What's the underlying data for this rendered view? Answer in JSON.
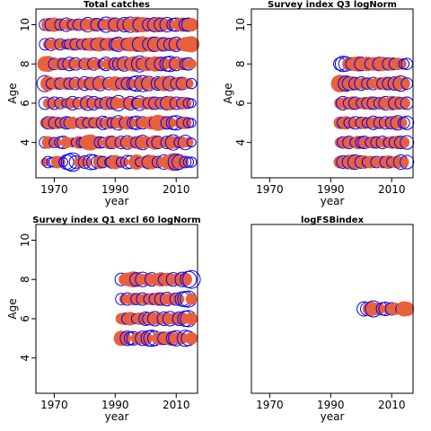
{
  "chart_data": [
    {
      "type": "scatter",
      "title": "Total catches",
      "xlabel": "year",
      "ylabel": "Age",
      "xlim": [
        1964,
        2017
      ],
      "ylim": [
        2.2,
        10.8
      ],
      "xticks": [
        1970,
        1990,
        2010
      ],
      "yticks": [
        4,
        6,
        8,
        10
      ],
      "positive_color": "#e8603c",
      "negative_color": "#0000ff",
      "ages": [
        3,
        4,
        5,
        6,
        7,
        8,
        9,
        10
      ],
      "years": [
        1967,
        1968,
        1969,
        1970,
        1971,
        1972,
        1973,
        1974,
        1975,
        1976,
        1977,
        1978,
        1979,
        1980,
        1981,
        1982,
        1983,
        1984,
        1985,
        1986,
        1987,
        1988,
        1989,
        1990,
        1991,
        1992,
        1993,
        1994,
        1995,
        1996,
        1997,
        1998,
        1999,
        2000,
        2001,
        2002,
        2003,
        2004,
        2005,
        2006,
        2007,
        2008,
        2009,
        2010,
        2011,
        2012,
        2013,
        2014,
        2015
      ],
      "residuals": {
        "3": [
          0.3,
          -0.5,
          -0.3,
          -0.4,
          0.6,
          0.4,
          -0.3,
          -0.8,
          -1.0,
          -1.3,
          -0.6,
          0.4,
          0.5,
          -0.6,
          0.3,
          -0.9,
          -0.8,
          -0.5,
          0.7,
          -0.5,
          0.4,
          -0.3,
          -0.6,
          0.8,
          0.5,
          -0.4,
          0.3,
          -0.7,
          -0.6,
          0.4,
          0.9,
          -0.3,
          0.4,
          0.6,
          -0.7,
          0.8,
          0.3,
          -0.5,
          0.4,
          -0.8,
          0.7,
          0.9,
          1.2,
          -1.0,
          -0.8,
          0.6,
          -0.5,
          -0.4,
          -0.4
        ],
        "4": [
          -0.5,
          0.6,
          0.4,
          -0.4,
          0.3,
          -0.5,
          -0.6,
          0.5,
          0.3,
          0.4,
          -0.3,
          0.6,
          -0.4,
          -0.5,
          0.9,
          1.0,
          0.4,
          0.6,
          -0.5,
          -0.4,
          0.3,
          0.7,
          -0.6,
          0.5,
          0.4,
          -0.6,
          0.5,
          -0.7,
          0.6,
          0.4,
          -0.5,
          0.7,
          -0.8,
          0.6,
          0.5,
          -0.4,
          0.8,
          -0.6,
          0.5,
          0.3,
          -0.6,
          0.7,
          -0.9,
          0.6,
          -0.4,
          0.5,
          -0.8,
          0.4,
          -0.3
        ],
        "5": [
          0.4,
          -0.6,
          0.7,
          -0.5,
          0.6,
          -0.4,
          0.5,
          -0.6,
          -0.5,
          0.6,
          0.4,
          0.3,
          -0.5,
          0.6,
          -0.4,
          0.5,
          -0.4,
          0.5,
          0.4,
          -0.7,
          -0.5,
          0.6,
          -0.4,
          0.5,
          -0.8,
          0.6,
          -0.4,
          0.7,
          0.5,
          -0.6,
          -0.7,
          0.5,
          -0.6,
          0.5,
          0.6,
          0.7,
          -0.5,
          1.0,
          0.8,
          0.7,
          -0.6,
          0.5,
          -0.7,
          -0.8,
          0.4,
          -0.5,
          0.6,
          -0.4,
          -0.3
        ],
        "6": [
          -0.6,
          0.4,
          0.5,
          -0.6,
          0.3,
          -0.5,
          0.4,
          -0.3,
          0.5,
          -0.7,
          0.4,
          -0.5,
          0.3,
          0.6,
          -0.8,
          0.4,
          -0.7,
          0.5,
          -0.4,
          0.3,
          -0.6,
          0.7,
          -0.5,
          0.6,
          -0.9,
          0.4,
          0.5,
          0.6,
          -0.7,
          0.5,
          -0.4,
          -0.8,
          0.5,
          0.6,
          -0.5,
          0.7,
          -0.6,
          0.4,
          -0.5,
          0.6,
          -0.7,
          0.8,
          0.5,
          -0.6,
          0.4,
          -0.5,
          0.6,
          -0.4,
          -0.3
        ],
        "7": [
          -1.0,
          0.9,
          -0.4,
          0.5,
          0.6,
          -0.5,
          0.3,
          0.6,
          -0.5,
          0.4,
          -0.6,
          0.5,
          0.4,
          -0.7,
          0.5,
          -0.6,
          0.6,
          0.7,
          -0.8,
          0.5,
          0.4,
          -0.6,
          0.5,
          0.8,
          0.6,
          -0.5,
          0.7,
          -0.6,
          0.5,
          -0.7,
          -0.9,
          0.6,
          -1.0,
          0.7,
          -0.8,
          0.6,
          0.5,
          -0.7,
          -0.6,
          0.9,
          0.7,
          -0.8,
          0.6,
          -0.5,
          0.7,
          -0.6,
          0.5,
          0.4,
          -0.4
        ],
        "8": [
          0.9,
          1.0,
          0.6,
          -0.5,
          0.4,
          0.6,
          -0.5,
          0.4,
          -0.7,
          0.5,
          -0.6,
          0.4,
          0.3,
          -0.5,
          0.6,
          0.4,
          -0.6,
          0.5,
          0.3,
          -0.4,
          -0.7,
          0.6,
          0.5,
          -0.6,
          -0.5,
          0.7,
          -0.8,
          0.6,
          -0.5,
          0.9,
          0.7,
          -1.0,
          -0.6,
          0.8,
          0.7,
          -0.6,
          0.9,
          0.8,
          -0.7,
          0.6,
          -0.8,
          -0.9,
          0.6,
          -0.7,
          0.5,
          0.6,
          -0.5,
          -0.6,
          0.4
        ],
        "9": [
          -0.5,
          0.4,
          -0.6,
          0.5,
          0.4,
          -0.5,
          0.4,
          -0.3,
          -0.4,
          0.6,
          -0.5,
          0.5,
          -0.4,
          0.6,
          -0.5,
          0.7,
          0.5,
          -0.6,
          0.8,
          0.6,
          -0.5,
          0.7,
          0.6,
          -0.6,
          -0.8,
          0.7,
          0.5,
          -0.6,
          0.8,
          0.7,
          0.9,
          -0.8,
          1.0,
          0.8,
          -0.6,
          0.9,
          -0.8,
          0.7,
          0.8,
          -0.7,
          0.6,
          -0.6,
          0.7,
          -0.8,
          0.6,
          -0.5,
          0.8,
          0.9,
          1.0
        ],
        "10": [
          -0.5,
          0.7,
          -0.6,
          0.8,
          0.6,
          -0.5,
          0.4,
          -0.7,
          0.6,
          -0.4,
          0.5,
          -0.5,
          0.4,
          0.6,
          -0.8,
          0.5,
          0.7,
          -0.6,
          0.5,
          -0.4,
          -0.9,
          0.6,
          0.8,
          -0.7,
          0.5,
          0.6,
          -0.8,
          0.7,
          -0.9,
          0.6,
          1.0,
          -0.7,
          0.9,
          0.8,
          -0.6,
          0.7,
          -0.8,
          0.9,
          -0.7,
          0.6,
          -0.8,
          0.5,
          -0.6,
          -0.7,
          0.6,
          0.8,
          -0.6,
          -0.7,
          0.7
        ]
      }
    },
    {
      "type": "scatter",
      "title": "Survey index Q3 logNorm",
      "xlabel": "year",
      "ylabel": "Age",
      "xlim": [
        1964,
        2017
      ],
      "ylim": [
        2.2,
        10.8
      ],
      "xticks": [
        1970,
        1990,
        2010
      ],
      "yticks": [
        4,
        6,
        8,
        10
      ],
      "positive_color": "#e8603c",
      "negative_color": "#0000ff",
      "ages": [
        3,
        4,
        5,
        6,
        7,
        8
      ],
      "years": [
        1993,
        1994,
        1995,
        1996,
        1997,
        1998,
        1999,
        2000,
        2001,
        2002,
        2003,
        2004,
        2005,
        2006,
        2007,
        2008,
        2009,
        2010,
        2011,
        2012,
        2013,
        2014,
        2015
      ],
      "residuals": {
        "3": [
          0.6,
          -0.6,
          0.5,
          -0.7,
          0.9,
          -0.8,
          0.5,
          -0.6,
          0.7,
          -0.4,
          0.6,
          0.5,
          -0.5,
          0.4,
          0.6,
          -0.5,
          0.7,
          -0.4,
          0.5,
          0.6,
          -0.8,
          0.4,
          -0.7
        ],
        "4": [
          0.4,
          -0.5,
          0.6,
          -0.6,
          0.5,
          -0.4,
          0.7,
          -0.5,
          -0.6,
          0.5,
          -0.4,
          0.6,
          -0.5,
          0.4,
          -0.6,
          0.5,
          -0.4,
          0.6,
          -0.5,
          0.7,
          -0.6,
          0.5,
          -0.7
        ],
        "5": [
          0.6,
          -0.5,
          0.7,
          -0.4,
          0.5,
          -0.6,
          0.3,
          -0.5,
          0.6,
          -0.4,
          0.5,
          -0.7,
          0.6,
          -0.5,
          0.4,
          -0.6,
          0.5,
          -0.6,
          0.7,
          -0.8,
          0.6,
          -0.5,
          -0.7
        ],
        "6": [
          0.5,
          -0.7,
          0.6,
          -0.5,
          0.7,
          -0.6,
          0.5,
          -0.4,
          0.6,
          -0.5,
          0.7,
          -0.6,
          0.4,
          -0.5,
          0.6,
          -0.7,
          0.5,
          0.8,
          -0.6,
          0.7,
          -0.5,
          0.6,
          -0.6
        ],
        "7": [
          1.2,
          1.0,
          -0.9,
          -0.7,
          0.8,
          -0.6,
          0.5,
          -0.7,
          0.6,
          -0.5,
          0.4,
          -0.6,
          0.5,
          0.6,
          -0.5,
          0.7,
          -0.6,
          0.5,
          -0.7,
          0.8,
          -0.9,
          0.6,
          -0.5
        ],
        "8": [
          -0.6,
          -0.9,
          -0.8,
          0.7,
          -0.6,
          0.8,
          0.9,
          -0.7,
          0.6,
          0.8,
          -0.5,
          0.7,
          0.6,
          -0.7,
          0.8,
          0.5,
          -0.6,
          0.7,
          -0.5,
          0.6,
          0.5,
          -0.4,
          -0.5
        ]
      }
    },
    {
      "type": "scatter",
      "title": "Survey index Q1 excl 60 logNorm",
      "xlabel": "year",
      "ylabel": "Age",
      "xlim": [
        1964,
        2017
      ],
      "ylim": [
        2.2,
        10.8
      ],
      "xticks": [
        1970,
        1990,
        2010
      ],
      "yticks": [
        4,
        6,
        8,
        10
      ],
      "positive_color": "#e8603c",
      "negative_color": "#0000ff",
      "ages": [
        5,
        6,
        7,
        8
      ],
      "years": [
        1992,
        1993,
        1994,
        1995,
        1996,
        1997,
        1998,
        1999,
        2000,
        2001,
        2002,
        2003,
        2004,
        2005,
        2006,
        2007,
        2008,
        2009,
        2010,
        2011,
        2012,
        2013,
        2014,
        2015
      ],
      "residuals": {
        "5": [
          0.9,
          0.7,
          -0.8,
          -0.6,
          -0.7,
          0.5,
          0.6,
          -0.8,
          0.7,
          -0.9,
          -1.0,
          -0.8,
          0.6,
          0.7,
          -0.6,
          0.5,
          0.8,
          -0.7,
          -0.9,
          0.6,
          0.5,
          -1.0,
          -0.8,
          0.6
        ],
        "6": [
          0.5,
          0.6,
          -0.5,
          0.7,
          0.5,
          -0.4,
          0.6,
          0.5,
          -0.7,
          -0.6,
          0.7,
          -0.8,
          0.6,
          0.5,
          -0.7,
          0.6,
          -0.8,
          0.5,
          0.6,
          -0.7,
          0.6,
          -0.9,
          -1.0,
          0.6
        ],
        "7": [
          -0.5,
          0.4,
          -0.6,
          0.5,
          0.6,
          -0.5,
          0.4,
          -0.6,
          0.5,
          -0.4,
          0.6,
          -0.5,
          0.7,
          -0.6,
          0.5,
          -0.7,
          0.6,
          0.5,
          -0.6,
          0.4,
          -0.8,
          -0.9,
          -1.0,
          0.5
        ],
        "8": [
          -0.6,
          0.5,
          0.7,
          0.8,
          1.0,
          -0.7,
          0.6,
          -0.8,
          0.5,
          0.6,
          -0.7,
          0.5,
          0.6,
          0.8,
          -0.5,
          0.7,
          0.6,
          -0.7,
          0.5,
          0.6,
          -0.8,
          0.7,
          -1.0,
          -1.2
        ]
      }
    },
    {
      "type": "scatter",
      "title": "logFSBindex",
      "xlabel": "year",
      "ylabel": "",
      "xlim": [
        1964,
        2017
      ],
      "ylim": [
        2.2,
        10.8
      ],
      "xticks": [
        1970,
        1990,
        2010
      ],
      "yticks": [],
      "positive_color": "#e8603c",
      "negative_color": "#0000ff",
      "ages": [
        6.5
      ],
      "years": [
        2001,
        2002,
        2003,
        2004,
        2005,
        2006,
        2007,
        2008,
        2009,
        2010,
        2011,
        2012,
        2013,
        2014,
        2015
      ],
      "residuals": {
        "6.5": [
          -0.8,
          -0.7,
          0.9,
          -1.0,
          0.6,
          0.5,
          -0.6,
          -0.7,
          0.5,
          -0.6,
          0.6,
          0.5,
          -0.4,
          0.9,
          0.8
        ]
      }
    }
  ]
}
